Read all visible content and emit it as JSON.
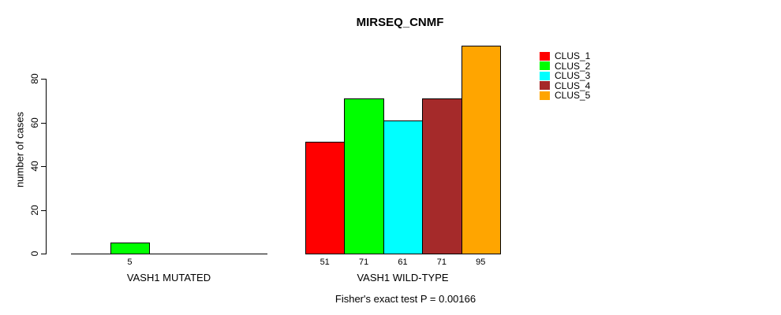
{
  "chart_data": {
    "type": "bar",
    "title": "MIRSEQ_CNMF",
    "ylabel": "number of cases",
    "xlabel": "",
    "ylim": [
      0,
      95
    ],
    "yticks": [
      0,
      20,
      40,
      60,
      80
    ],
    "grid": false,
    "legend_position": "top-right",
    "categories": [
      "VASH1 MUTATED",
      "VASH1 WILD-TYPE"
    ],
    "series": [
      {
        "name": "CLUS_1",
        "color": "#FF0000",
        "values": [
          0,
          51
        ]
      },
      {
        "name": "CLUS_2",
        "color": "#00FF00",
        "values": [
          5,
          71
        ]
      },
      {
        "name": "CLUS_3",
        "color": "#00FFFF",
        "values": [
          0,
          61
        ]
      },
      {
        "name": "CLUS_4",
        "color": "#A52A2A",
        "values": [
          0,
          71
        ]
      },
      {
        "name": "CLUS_5",
        "color": "#FFA500",
        "values": [
          0,
          95
        ]
      }
    ],
    "bar_value_labels": [
      [
        "",
        "5",
        "",
        "",
        ""
      ],
      [
        "51",
        "71",
        "61",
        "71",
        "95"
      ]
    ],
    "footnote": "Fisher's exact test P = 0.00166"
  }
}
